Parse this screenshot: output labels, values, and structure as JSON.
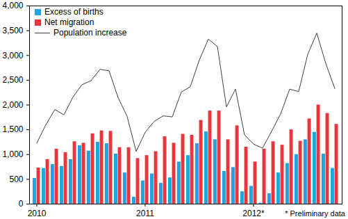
{
  "chart_data": {
    "type": "bar",
    "categories": [
      "2010",
      null,
      null,
      null,
      null,
      null,
      null,
      null,
      null,
      null,
      null,
      null,
      "2011",
      null,
      null,
      null,
      null,
      null,
      null,
      null,
      null,
      null,
      null,
      null,
      "2012*",
      null,
      null,
      null,
      null,
      null,
      null,
      null,
      null,
      null
    ],
    "series": [
      {
        "name": "Excess of births",
        "type": "bar",
        "color": "#1fa4dd",
        "values": [
          520,
          720,
          800,
          760,
          900,
          1180,
          1070,
          1250,
          1220,
          1010,
          630,
          140,
          470,
          610,
          420,
          530,
          850,
          980,
          1220,
          1460,
          1300,
          660,
          740,
          250,
          360,
          20,
          210,
          630,
          820,
          1000,
          1300,
          1450,
          1010,
          720
        ]
      },
      {
        "name": "Net migration",
        "type": "bar",
        "color": "#e8363c",
        "values": [
          730,
          900,
          1110,
          1040,
          1260,
          1230,
          1420,
          1480,
          1470,
          1140,
          1140,
          920,
          980,
          1060,
          1360,
          1230,
          1410,
          1390,
          1690,
          1880,
          1880,
          1300,
          1580,
          1150,
          850,
          1110,
          1260,
          1190,
          1500,
          1270,
          1720,
          2000,
          1830,
          1610
        ]
      },
      {
        "name": "Population increase",
        "type": "line",
        "color": "#404040",
        "values": [
          1230,
          1600,
          1910,
          1800,
          2160,
          2410,
          2490,
          2720,
          2690,
          2150,
          1770,
          1060,
          1450,
          1670,
          1780,
          1760,
          2260,
          2370,
          2910,
          3330,
          3180,
          1960,
          2320,
          1400,
          1210,
          1130,
          1470,
          1820,
          2320,
          2270,
          3020,
          3450,
          2840,
          2330
        ]
      }
    ],
    "ylim": [
      0,
      4000
    ],
    "yticks": [
      0,
      500,
      1000,
      1500,
      2000,
      2500,
      3000,
      3500,
      4000
    ],
    "grid": false,
    "legend": "top-left",
    "annotations": [
      "* Preliminary data"
    ]
  }
}
